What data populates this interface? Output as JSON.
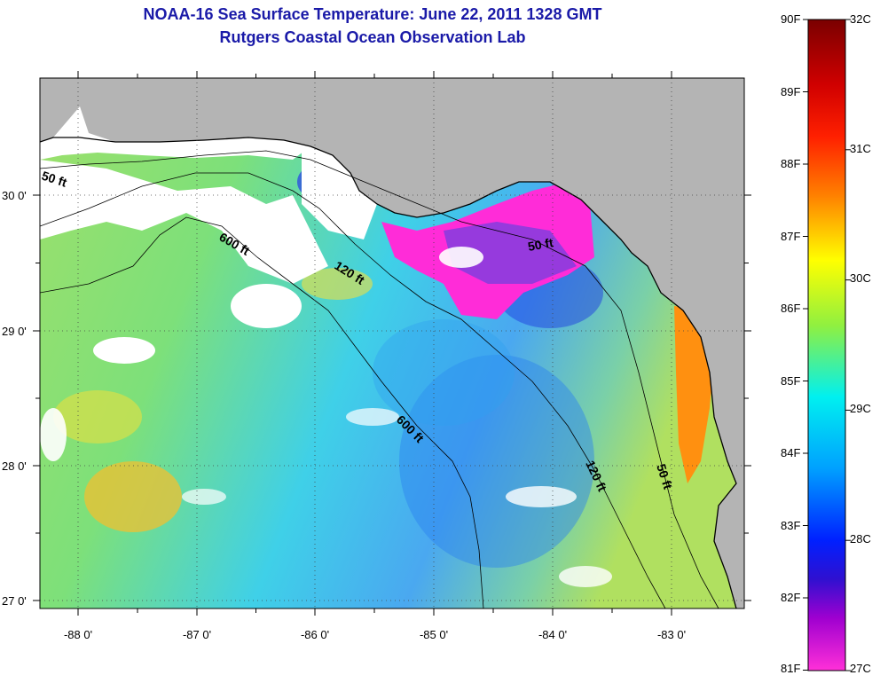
{
  "header": {
    "title": "NOAA-16 Sea Surface Temperature:  June 22, 2011 1328 GMT",
    "subtitle": "Rutgers Coastal Ocean Observation Lab"
  },
  "map": {
    "x_ticks": [
      "-88 0'",
      "-87 0'",
      "-86 0'",
      "-85 0'",
      "-84 0'",
      "-83 0'"
    ],
    "y_ticks": [
      "30 0'",
      "29 0'",
      "28 0'",
      "27 0'"
    ],
    "lon_range": [
      -88.33,
      -82.33
    ],
    "lat_range": [
      26.95,
      30.85
    ],
    "contour_labels": [
      "50 ft",
      "600 ft",
      "120 ft",
      "50 ft",
      "600 ft",
      "120 ft",
      "50 ft"
    ],
    "land_color": "#b4b4b4",
    "cloud_color": "#ffffff"
  },
  "colorbar": {
    "f_labels": [
      "90F",
      "89F",
      "88F",
      "87F",
      "86F",
      "85F",
      "84F",
      "83F",
      "82F",
      "81F"
    ],
    "c_labels": [
      "32C",
      "31C",
      "30C",
      "29C",
      "28C",
      "27C"
    ],
    "colors": [
      "#7a0000",
      "#ff0000",
      "#ff8000",
      "#ffff00",
      "#00e5e5",
      "#0000ff",
      "#ff00ff"
    ]
  }
}
